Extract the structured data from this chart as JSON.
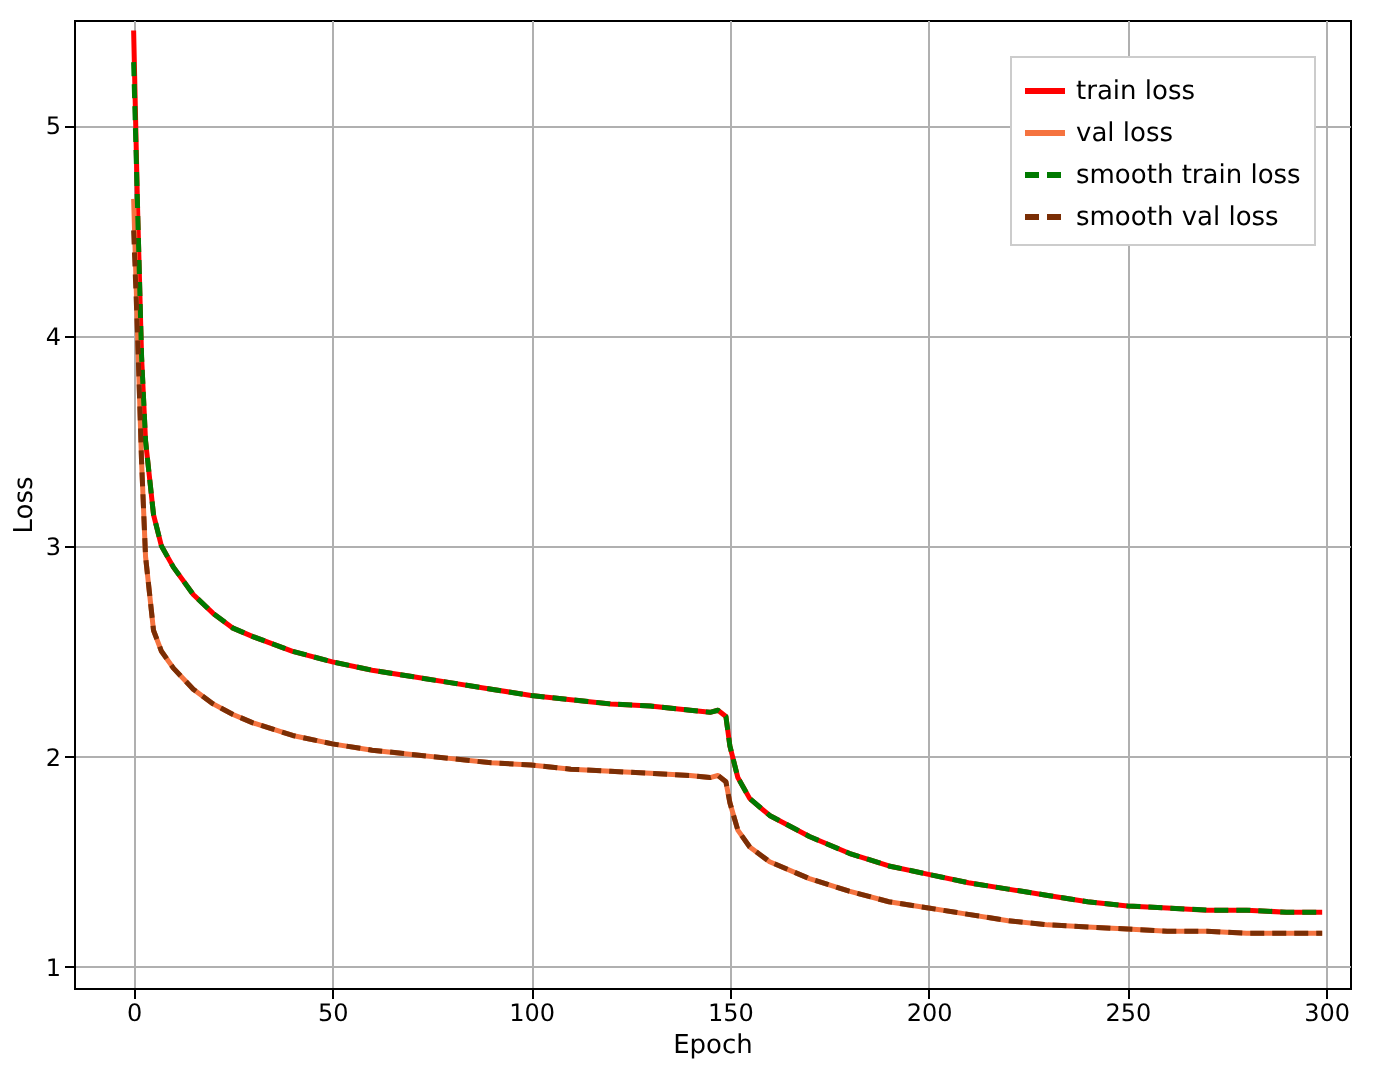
{
  "chart_data": {
    "type": "line",
    "xlabel": "Epoch",
    "ylabel": "Loss",
    "xlim": [
      -15,
      306
    ],
    "ylim": [
      0.9,
      5.5
    ],
    "xticks": [
      0,
      50,
      100,
      150,
      200,
      250,
      300
    ],
    "yticks": [
      1,
      2,
      3,
      4,
      5
    ],
    "grid": true,
    "legend": "top right",
    "x": [
      0,
      1,
      2,
      3,
      5,
      7,
      10,
      15,
      20,
      25,
      30,
      40,
      50,
      60,
      70,
      80,
      90,
      100,
      110,
      120,
      130,
      140,
      145,
      147,
      149,
      150,
      152,
      155,
      160,
      170,
      180,
      190,
      200,
      210,
      220,
      230,
      240,
      250,
      260,
      270,
      280,
      290,
      299
    ],
    "series": [
      {
        "name": "train loss",
        "color": "#ff0000",
        "line_style": "solid",
        "values": [
          5.45,
          4.6,
          3.9,
          3.5,
          3.15,
          3.0,
          2.9,
          2.77,
          2.68,
          2.61,
          2.57,
          2.5,
          2.45,
          2.41,
          2.38,
          2.35,
          2.32,
          2.29,
          2.27,
          2.25,
          2.24,
          2.22,
          2.21,
          2.22,
          2.19,
          2.05,
          1.9,
          1.8,
          1.72,
          1.62,
          1.54,
          1.48,
          1.44,
          1.4,
          1.37,
          1.34,
          1.31,
          1.29,
          1.28,
          1.27,
          1.27,
          1.26,
          1.26
        ]
      },
      {
        "name": "val loss",
        "color": "#f5733f",
        "line_style": "solid",
        "values": [
          4.65,
          4.0,
          3.4,
          2.95,
          2.6,
          2.5,
          2.42,
          2.32,
          2.25,
          2.2,
          2.16,
          2.1,
          2.06,
          2.03,
          2.01,
          1.99,
          1.97,
          1.96,
          1.94,
          1.93,
          1.92,
          1.91,
          1.9,
          1.91,
          1.88,
          1.78,
          1.65,
          1.57,
          1.5,
          1.42,
          1.36,
          1.31,
          1.28,
          1.25,
          1.22,
          1.2,
          1.19,
          1.18,
          1.17,
          1.17,
          1.16,
          1.16,
          1.16
        ]
      },
      {
        "name": "smooth train loss",
        "color": "#007a00",
        "line_style": "dashed",
        "values": [
          5.3,
          4.6,
          3.9,
          3.5,
          3.15,
          3.0,
          2.9,
          2.77,
          2.68,
          2.61,
          2.57,
          2.5,
          2.45,
          2.41,
          2.38,
          2.35,
          2.32,
          2.29,
          2.27,
          2.25,
          2.24,
          2.22,
          2.21,
          2.22,
          2.19,
          2.05,
          1.9,
          1.8,
          1.72,
          1.62,
          1.54,
          1.48,
          1.44,
          1.4,
          1.37,
          1.34,
          1.31,
          1.29,
          1.28,
          1.27,
          1.27,
          1.26,
          1.26
        ]
      },
      {
        "name": "smooth val loss",
        "color": "#7a2e05",
        "line_style": "dashed",
        "values": [
          4.5,
          4.0,
          3.4,
          2.95,
          2.6,
          2.5,
          2.42,
          2.32,
          2.25,
          2.2,
          2.16,
          2.1,
          2.06,
          2.03,
          2.01,
          1.99,
          1.97,
          1.96,
          1.94,
          1.93,
          1.92,
          1.91,
          1.9,
          1.91,
          1.88,
          1.78,
          1.65,
          1.57,
          1.5,
          1.42,
          1.36,
          1.31,
          1.28,
          1.25,
          1.22,
          1.2,
          1.19,
          1.18,
          1.17,
          1.17,
          1.16,
          1.16,
          1.16
        ]
      }
    ]
  }
}
